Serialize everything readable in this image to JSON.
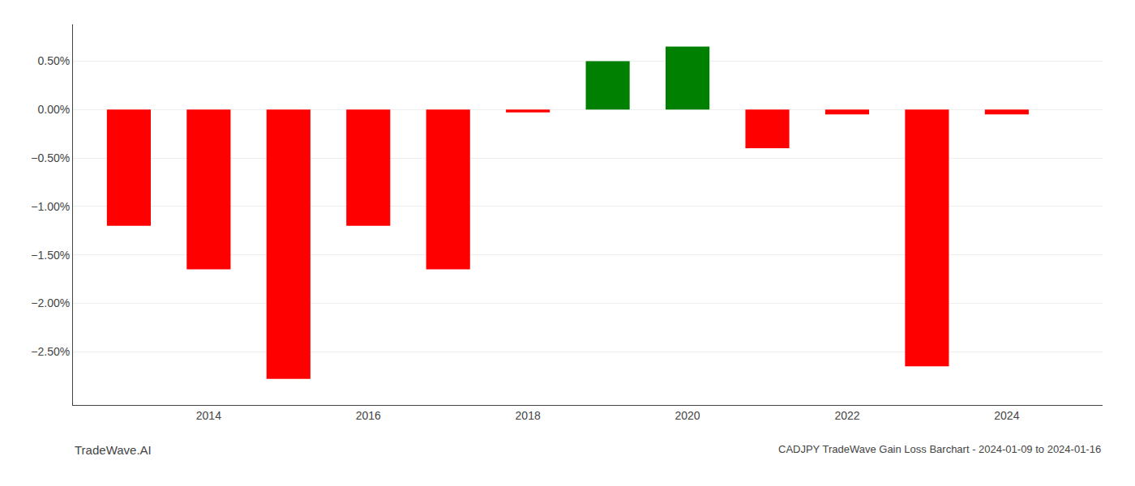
{
  "chart_data": {
    "type": "bar",
    "title": "CADJPY TradeWave Gain Loss Barchart - 2024-01-09 to 2024-01-16",
    "annotations": [
      "TradeWave.AI"
    ],
    "x": [
      2013,
      2014,
      2015,
      2016,
      2017,
      2018,
      2019,
      2020,
      2021,
      2022,
      2023,
      2024
    ],
    "values": [
      -1.2,
      -1.65,
      -2.78,
      -1.2,
      -1.65,
      -0.03,
      0.5,
      0.65,
      -0.4,
      -0.05,
      -2.65,
      -0.05
    ],
    "colors": [
      "#ff0000",
      "#ff0000",
      "#ff0000",
      "#ff0000",
      "#ff0000",
      "#ff0000",
      "#008000",
      "#008000",
      "#ff0000",
      "#ff0000",
      "#ff0000",
      "#ff0000"
    ],
    "xlim": [
      2012.3,
      2025.2
    ],
    "xticks": [
      2014,
      2016,
      2018,
      2020,
      2022,
      2024
    ],
    "ylim": [
      -3.05,
      0.88
    ],
    "yticks": [
      {
        "value": 0.5,
        "label": "0.50%"
      },
      {
        "value": 0.0,
        "label": "0.00%"
      },
      {
        "value": -0.5,
        "label": "−0.50%"
      },
      {
        "value": -1.0,
        "label": "−1.00%"
      },
      {
        "value": -1.5,
        "label": "−1.50%"
      },
      {
        "value": -2.0,
        "label": "−2.00%"
      },
      {
        "value": -2.5,
        "label": "−2.50%"
      }
    ],
    "grid": true
  }
}
